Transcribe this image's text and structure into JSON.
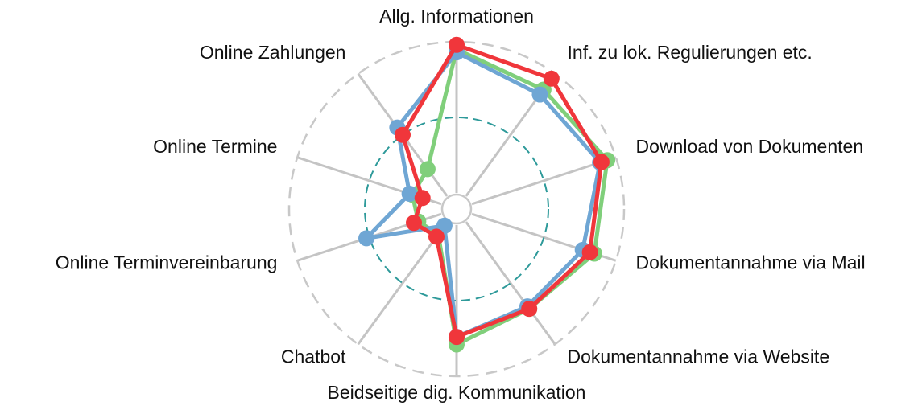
{
  "chart_data": {
    "type": "radar",
    "categories": [
      "Allg. Informationen",
      "Inf. zu lok. Regulierungen etc.",
      "Download von Dokumenten",
      "Dokumentannahme via Mail",
      "Dokumentannahme via Website",
      "Beidseitige dig. Kommunikation",
      "Chatbot",
      "Online Terminvereinbarung",
      "Online Termine",
      "Online Zahlungen"
    ],
    "series": [
      {
        "color": "#80cf7b",
        "values": [
          0.95,
          0.87,
          0.94,
          0.85,
          0.71,
          0.79,
          0.1,
          0.16,
          0.2,
          0.22
        ]
      },
      {
        "color": "#6fa6d4",
        "values": [
          0.93,
          0.83,
          0.89,
          0.77,
          0.69,
          0.74,
          0.03,
          0.52,
          0.22,
          0.56
        ]
      },
      {
        "color": "#f0363b",
        "values": [
          0.98,
          0.96,
          0.9,
          0.82,
          0.71,
          0.74,
          0.12,
          0.19,
          0.13,
          0.5
        ]
      }
    ],
    "ylim": [
      0,
      1
    ],
    "yticks": [
      1
    ],
    "reference_line": 0.5,
    "reference_color": "#2e9a9a"
  }
}
